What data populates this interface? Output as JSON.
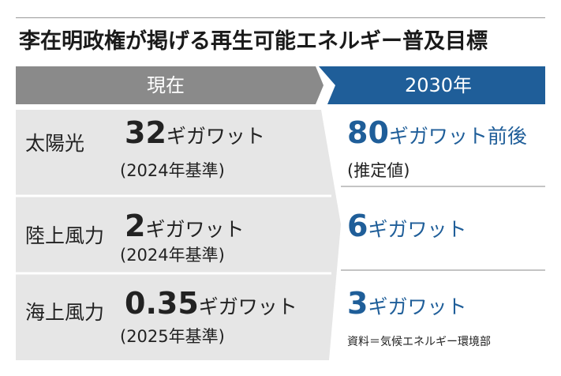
{
  "title": "李在明政権が掲げる再生可能エネルギー普及目標",
  "headers": {
    "current": "現在",
    "target": "2030年"
  },
  "colors": {
    "current_header": "#8a8a8a",
    "target_header": "#1f5e99",
    "row_bg": "#e6e6e6",
    "accent_text": "#1f5e99"
  },
  "rows": [
    {
      "region": "太陽光",
      "current_value": "32",
      "current_unit": "ギガワット",
      "current_basis": "(2024年基準)",
      "target_value": "80",
      "target_unit": "ギガワット前後",
      "target_note": "(推定値)"
    },
    {
      "region": "陸上風力",
      "current_value": "2",
      "current_unit": "ギガワット",
      "current_basis": "(2024年基準)",
      "target_value": "6",
      "target_unit": "ギガワット",
      "target_note": ""
    },
    {
      "region": "海上風力",
      "current_value": "0.35",
      "current_unit": "ギガワット",
      "current_basis": "(2025年基準)",
      "target_value": "3",
      "target_unit": "ギガワット",
      "target_note": ""
    }
  ],
  "source": "資料＝気候エネルギー環境部"
}
